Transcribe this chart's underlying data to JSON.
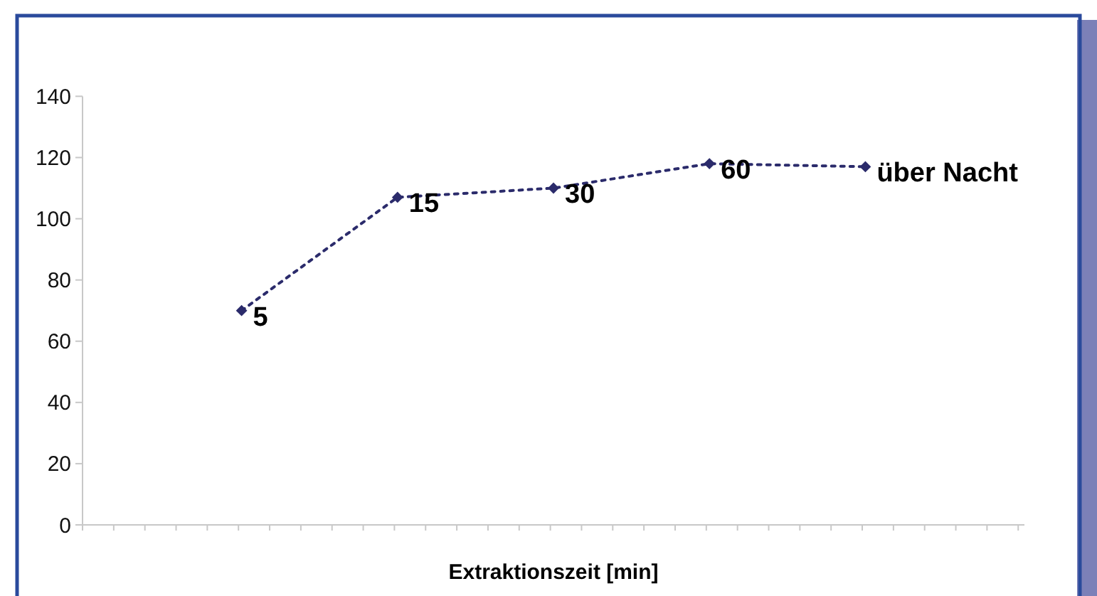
{
  "chart_data": {
    "type": "line",
    "xlabel": "Extraktionszeit [min]",
    "categories": [
      null,
      null,
      null,
      null,
      null
    ],
    "series": [
      {
        "color": "#2b2b6b",
        "values": [
          70,
          107,
          110,
          118,
          117
        ]
      }
    ],
    "annotations": [
      "5",
      "15",
      "30",
      "60",
      "über Nacht"
    ],
    "ylim": [
      0,
      140
    ],
    "yticks": [
      0,
      20,
      40,
      60,
      80,
      100,
      120,
      140
    ],
    "grid": false,
    "marker": "diamond",
    "line_style": "dotted",
    "tick_labels": "y"
  }
}
